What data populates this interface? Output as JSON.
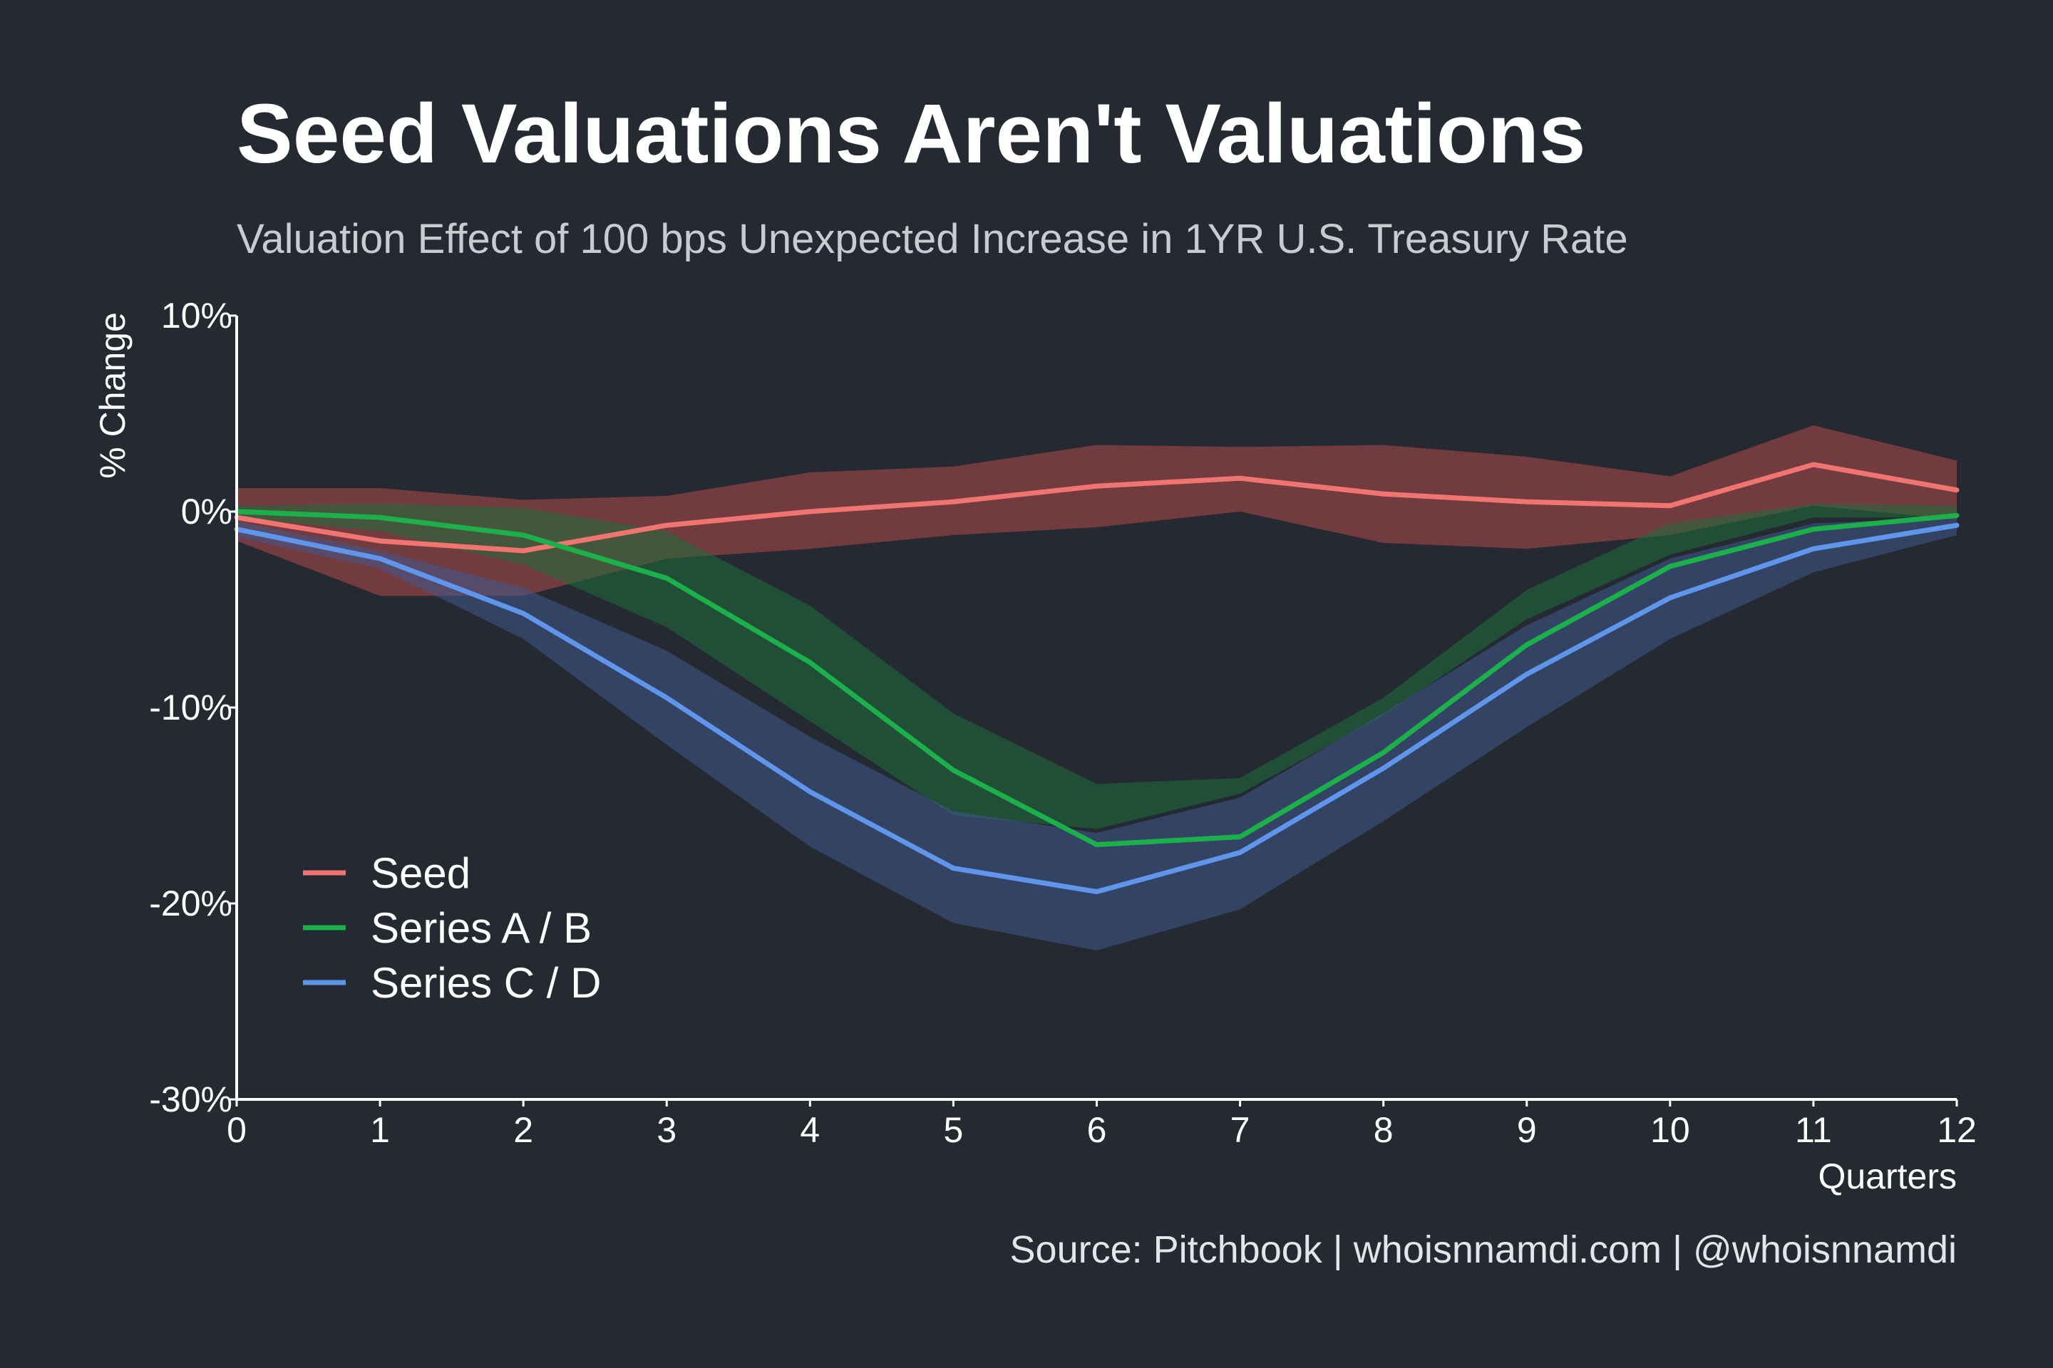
{
  "chart_data": {
    "type": "line",
    "title": "Seed Valuations Aren't Valuations",
    "subtitle": "Valuation Effect of 100 bps Unexpected Increase in 1YR U.S. Treasury Rate",
    "xlabel": "Quarters",
    "ylabel": "% Change",
    "x": [
      0,
      1,
      2,
      3,
      4,
      5,
      6,
      7,
      8,
      9,
      10,
      11,
      12
    ],
    "xticks": [
      "0",
      "1",
      "2",
      "3",
      "4",
      "5",
      "6",
      "7",
      "8",
      "9",
      "10",
      "11",
      "12"
    ],
    "xlim": [
      0,
      12
    ],
    "ylim": [
      -30,
      10
    ],
    "yticks": [
      10,
      0,
      -10,
      -20,
      -30
    ],
    "ytick_labels": [
      "10%",
      "0%",
      "-10%",
      "-20%",
      "-30%"
    ],
    "legend_position": "lower-left",
    "series": [
      {
        "name": "Seed",
        "color": "#f07470",
        "band_color": "#b04a4a",
        "values": [
          -0.3,
          -1.5,
          -2.0,
          -0.7,
          0.0,
          0.5,
          1.3,
          1.7,
          0.9,
          0.5,
          0.3,
          2.4,
          1.1
        ],
        "upper": [
          1.2,
          1.2,
          0.6,
          0.8,
          2.0,
          2.3,
          3.4,
          3.3,
          3.4,
          2.8,
          1.8,
          4.4,
          2.6
        ],
        "lower": [
          -1.5,
          -4.3,
          -4.3,
          -2.4,
          -1.9,
          -1.2,
          -0.8,
          0.0,
          -1.6,
          -1.9,
          -1.2,
          0.3,
          -0.4
        ]
      },
      {
        "name": "Series A / B",
        "color": "#1bb04a",
        "band_color": "#1f6e3a",
        "values": [
          0.0,
          -0.3,
          -1.2,
          -3.4,
          -7.7,
          -13.2,
          -17.0,
          -16.6,
          -12.3,
          -6.8,
          -2.8,
          -0.9,
          -0.2
        ],
        "upper": [
          0.3,
          0.4,
          0.2,
          -1.0,
          -4.8,
          -10.3,
          -13.9,
          -13.6,
          -9.5,
          -4.0,
          -0.6,
          0.4,
          0.3
        ],
        "lower": [
          -0.3,
          -1.0,
          -2.7,
          -5.9,
          -10.7,
          -15.5,
          -16.2,
          -14.4,
          -10.4,
          -5.5,
          -2.2,
          -0.3,
          -0.3
        ]
      },
      {
        "name": "Series C / D",
        "color": "#5f95ea",
        "band_color": "#3f5a8e",
        "values": [
          -0.9,
          -2.4,
          -5.2,
          -9.5,
          -14.3,
          -18.2,
          -19.4,
          -17.4,
          -13.1,
          -8.3,
          -4.4,
          -1.9,
          -0.7
        ],
        "upper": [
          -0.5,
          -2.0,
          -3.9,
          -7.1,
          -11.5,
          -15.3,
          -16.4,
          -14.6,
          -10.3,
          -5.8,
          -2.4,
          -0.6,
          -0.3
        ],
        "lower": [
          -1.3,
          -2.9,
          -6.5,
          -11.9,
          -17.1,
          -21.0,
          -22.4,
          -20.3,
          -15.8,
          -11.0,
          -6.5,
          -3.1,
          -1.2
        ]
      }
    ]
  },
  "source": "Source: Pitchbook | whoisnnamdi.com | @whoisnnamdi"
}
